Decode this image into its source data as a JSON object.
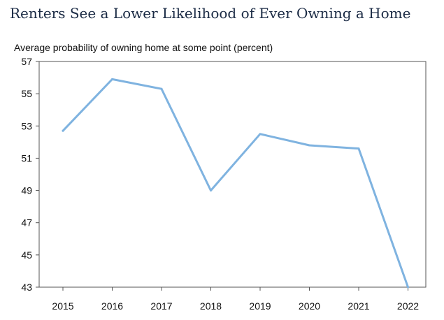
{
  "header": {
    "title": "Renters See a Lower Likelihood of Ever Owning a Home"
  },
  "chart_data": {
    "type": "line",
    "title": "",
    "ylabel": "Average probability of owning home at some point (percent)",
    "xlabel": "",
    "categories": [
      "2015",
      "2016",
      "2017",
      "2018",
      "2019",
      "2020",
      "2021",
      "2022"
    ],
    "series": [
      {
        "values": [
          52.7,
          55.9,
          55.3,
          49.0,
          52.5,
          51.8,
          51.6,
          43.0
        ]
      }
    ],
    "ylim": [
      43,
      57
    ],
    "yticks": [
      "57",
      "55",
      "53",
      "51",
      "49",
      "47",
      "45",
      "43"
    ],
    "grid": false,
    "legend": "none",
    "line_color": "#7fb3e0"
  }
}
